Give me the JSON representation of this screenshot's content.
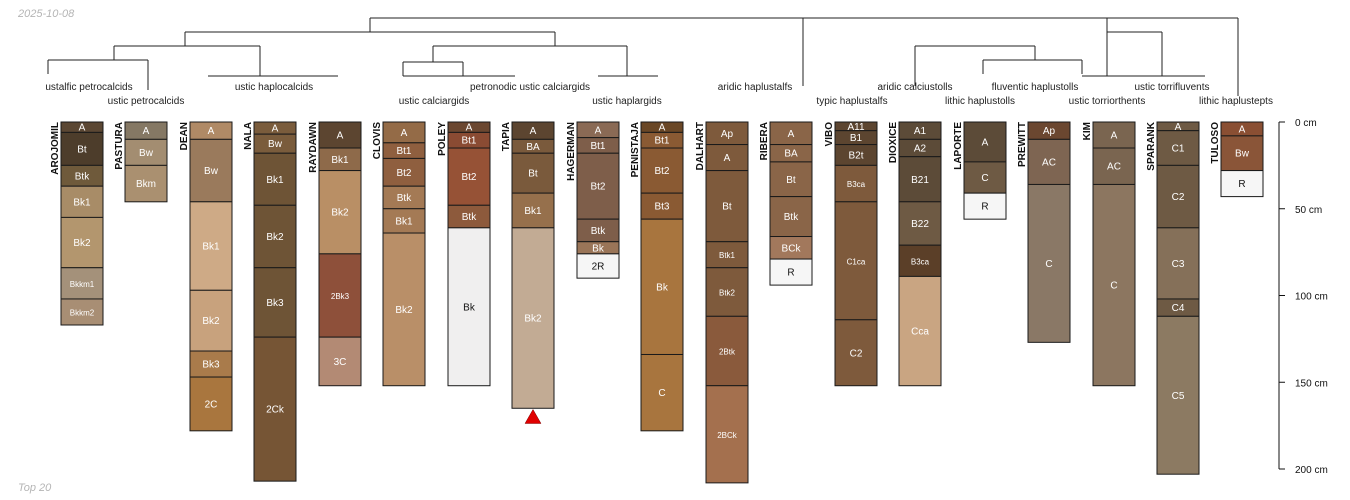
{
  "header": {
    "date": "2025-10-08"
  },
  "footer": {
    "label": "Top 20"
  },
  "chart_data": {
    "type": "soil-profile-sketch",
    "title": "",
    "depth_axis": {
      "unit": "cm",
      "range": [
        0,
        200
      ],
      "ticks": [
        {
          "value": 0,
          "label": "0 cm"
        },
        {
          "value": 50,
          "label": "50 cm"
        },
        {
          "value": 100,
          "label": "100 cm"
        },
        {
          "value": 150,
          "label": "150 cm"
        },
        {
          "value": 200,
          "label": "200 cm"
        }
      ]
    },
    "taxa": [
      {
        "label": "ustalfic petrocalcids"
      },
      {
        "label": "ustic petrocalcids"
      },
      {
        "label": "ustic haplocalcids"
      },
      {
        "label": "ustic calciargids"
      },
      {
        "label": "petronodic ustic calciargids"
      },
      {
        "label": "ustic haplargids"
      },
      {
        "label": "aridic haplustalfs"
      },
      {
        "label": "typic haplustalfs"
      },
      {
        "label": "aridic calciustolls"
      },
      {
        "label": "lithic haplustolls"
      },
      {
        "label": "fluventic haplustolls"
      },
      {
        "label": "ustic torriorthents"
      },
      {
        "label": "ustic torrifluvents"
      },
      {
        "label": "lithic haplustepts"
      }
    ],
    "profiles": [
      {
        "name": "AROJOMIL",
        "horizons": [
          {
            "name": "A",
            "top": 0,
            "bottom": 6,
            "color": "#5b4733"
          },
          {
            "name": "Bt",
            "top": 6,
            "bottom": 25,
            "color": "#4d3d2b"
          },
          {
            "name": "Btk",
            "top": 25,
            "bottom": 37,
            "color": "#6f5a3b"
          },
          {
            "name": "Bk1",
            "top": 37,
            "bottom": 55,
            "color": "#a88c67"
          },
          {
            "name": "Bk2",
            "top": 55,
            "bottom": 84,
            "color": "#b3966e"
          },
          {
            "name": "Bkkm1",
            "top": 84,
            "bottom": 102,
            "color": "#a4917a"
          },
          {
            "name": "Bkkm2",
            "top": 102,
            "bottom": 117,
            "color": "#a88e74"
          }
        ]
      },
      {
        "name": "PASTURA",
        "horizons": [
          {
            "name": "A",
            "top": 0,
            "bottom": 10,
            "color": "#857864"
          },
          {
            "name": "Bw",
            "top": 10,
            "bottom": 25,
            "color": "#a38d71"
          },
          {
            "name": "Bkm",
            "top": 25,
            "bottom": 46,
            "color": "#aa9070"
          }
        ]
      },
      {
        "name": "DEAN",
        "horizons": [
          {
            "name": "A",
            "top": 0,
            "bottom": 10,
            "color": "#b08a66"
          },
          {
            "name": "Bw",
            "top": 10,
            "bottom": 46,
            "color": "#9a7a5c"
          },
          {
            "name": "Bk1",
            "top": 46,
            "bottom": 97,
            "color": "#ceaa86"
          },
          {
            "name": "Bk2",
            "top": 97,
            "bottom": 132,
            "color": "#c8a27d"
          },
          {
            "name": "Bk3",
            "top": 132,
            "bottom": 147,
            "color": "#a97b4b"
          },
          {
            "name": "2C",
            "top": 147,
            "bottom": 178,
            "color": "#a9763e"
          }
        ]
      },
      {
        "name": "NALA",
        "horizons": [
          {
            "name": "A",
            "top": 0,
            "bottom": 7,
            "color": "#7a5c3c"
          },
          {
            "name": "Bw",
            "top": 7,
            "bottom": 18,
            "color": "#7a5c3c"
          },
          {
            "name": "Bk1",
            "top": 18,
            "bottom": 48,
            "color": "#6e5436"
          },
          {
            "name": "Bk2",
            "top": 48,
            "bottom": 84,
            "color": "#6e5436"
          },
          {
            "name": "Bk3",
            "top": 84,
            "bottom": 124,
            "color": "#6e5436"
          },
          {
            "name": "2Ck",
            "top": 124,
            "bottom": 207,
            "color": "#765535"
          }
        ]
      },
      {
        "name": "RAYDAWN",
        "horizons": [
          {
            "name": "A",
            "top": 0,
            "bottom": 15,
            "color": "#5c4530"
          },
          {
            "name": "Bk1",
            "top": 15,
            "bottom": 28,
            "color": "#8e6a4a"
          },
          {
            "name": "Bk2",
            "top": 28,
            "bottom": 76,
            "color": "#b98f65"
          },
          {
            "name": "2Bk3",
            "top": 76,
            "bottom": 124,
            "color": "#8e503a"
          },
          {
            "name": "3C",
            "top": 124,
            "bottom": 152,
            "color": "#b38a74"
          }
        ]
      },
      {
        "name": "CLOVIS",
        "horizons": [
          {
            "name": "A",
            "top": 0,
            "bottom": 12,
            "color": "#946b47"
          },
          {
            "name": "Bt1",
            "top": 12,
            "bottom": 21,
            "color": "#8f5f3f"
          },
          {
            "name": "Bt2",
            "top": 21,
            "bottom": 37,
            "color": "#8f5f3f"
          },
          {
            "name": "Btk",
            "top": 37,
            "bottom": 50,
            "color": "#a47a55"
          },
          {
            "name": "Bk1",
            "top": 50,
            "bottom": 64,
            "color": "#a47a55"
          },
          {
            "name": "Bk2",
            "top": 64,
            "bottom": 152,
            "color": "#b98f68"
          }
        ]
      },
      {
        "name": "POLEY",
        "horizons": [
          {
            "name": "A",
            "top": 0,
            "bottom": 6,
            "color": "#6b4730"
          },
          {
            "name": "Bt1",
            "top": 6,
            "bottom": 15,
            "color": "#8a4b33"
          },
          {
            "name": "Bt2",
            "top": 15,
            "bottom": 48,
            "color": "#965236"
          },
          {
            "name": "Btk",
            "top": 48,
            "bottom": 61,
            "color": "#8d5a3c"
          },
          {
            "name": "Bk",
            "top": 61,
            "bottom": 152,
            "color": "#f0efef"
          }
        ]
      },
      {
        "name": "TAPIA",
        "horizons": [
          {
            "name": "A",
            "top": 0,
            "bottom": 10,
            "color": "#5c4530"
          },
          {
            "name": "BA",
            "top": 10,
            "bottom": 18,
            "color": "#7a5a3c"
          },
          {
            "name": "Bt",
            "top": 18,
            "bottom": 41,
            "color": "#7a5a3c"
          },
          {
            "name": "Bk1",
            "top": 41,
            "bottom": 61,
            "color": "#96704c"
          },
          {
            "name": "Bk2",
            "top": 61,
            "bottom": 165,
            "color": "#c2ab94"
          }
        ]
      },
      {
        "name": "HAGERMAN",
        "horizons": [
          {
            "name": "A",
            "top": 0,
            "bottom": 9,
            "color": "#8a6a55"
          },
          {
            "name": "Bt1",
            "top": 9,
            "bottom": 18,
            "color": "#7e5e4a"
          },
          {
            "name": "Bt2",
            "top": 18,
            "bottom": 56,
            "color": "#7e5e4a"
          },
          {
            "name": "Btk",
            "top": 56,
            "bottom": 69,
            "color": "#7e5e4a"
          },
          {
            "name": "Bk",
            "top": 69,
            "bottom": 76,
            "color": "#9a7558"
          },
          {
            "name": "2R",
            "top": 76,
            "bottom": 90,
            "color": "#f6f6f6"
          }
        ]
      },
      {
        "name": "PENISTAJA",
        "horizons": [
          {
            "name": "A",
            "top": 0,
            "bottom": 6,
            "color": "#6a4726"
          },
          {
            "name": "Bt1",
            "top": 6,
            "bottom": 15,
            "color": "#8a5a33"
          },
          {
            "name": "Bt2",
            "top": 15,
            "bottom": 41,
            "color": "#8a5a33"
          },
          {
            "name": "Bt3",
            "top": 41,
            "bottom": 56,
            "color": "#8a5a33"
          },
          {
            "name": "Bk",
            "top": 56,
            "bottom": 134,
            "color": "#a8753e"
          },
          {
            "name": "C",
            "top": 134,
            "bottom": 178,
            "color": "#a8753e"
          }
        ]
      },
      {
        "name": "DALHART",
        "horizons": [
          {
            "name": "Ap",
            "top": 0,
            "bottom": 13,
            "color": "#7e5a3c"
          },
          {
            "name": "A",
            "top": 13,
            "bottom": 28,
            "color": "#7e5a3c"
          },
          {
            "name": "Bt",
            "top": 28,
            "bottom": 69,
            "color": "#7e5a3c"
          },
          {
            "name": "Btk1",
            "top": 69,
            "bottom": 84,
            "color": "#7e5a3c"
          },
          {
            "name": "Btk2",
            "top": 84,
            "bottom": 112,
            "color": "#7e5a3c"
          },
          {
            "name": "2Btk",
            "top": 112,
            "bottom": 152,
            "color": "#8a5a3c"
          },
          {
            "name": "2BCk",
            "top": 152,
            "bottom": 208,
            "color": "#a4704e"
          }
        ]
      },
      {
        "name": "RIBERA",
        "horizons": [
          {
            "name": "A",
            "top": 0,
            "bottom": 13,
            "color": "#8a6548"
          },
          {
            "name": "BA",
            "top": 13,
            "bottom": 23,
            "color": "#8a6548"
          },
          {
            "name": "Bt",
            "top": 23,
            "bottom": 43,
            "color": "#8a6548"
          },
          {
            "name": "Btk",
            "top": 43,
            "bottom": 66,
            "color": "#8a6548"
          },
          {
            "name": "BCk",
            "top": 66,
            "bottom": 79,
            "color": "#a2785c"
          },
          {
            "name": "R",
            "top": 79,
            "bottom": 94,
            "color": "#f6f6f6"
          }
        ]
      },
      {
        "name": "VIBO",
        "horizons": [
          {
            "name": "A11",
            "top": 0,
            "bottom": 5,
            "color": "#5c4530"
          },
          {
            "name": "B1",
            "top": 5,
            "bottom": 13,
            "color": "#5c4530"
          },
          {
            "name": "B2t",
            "top": 13,
            "bottom": 25,
            "color": "#5c4530"
          },
          {
            "name": "B3ca",
            "top": 25,
            "bottom": 46,
            "color": "#7e5a3c"
          },
          {
            "name": "C1ca",
            "top": 46,
            "bottom": 114,
            "color": "#7e5a3c"
          },
          {
            "name": "C2",
            "top": 114,
            "bottom": 152,
            "color": "#7e5a3c"
          }
        ]
      },
      {
        "name": "DIOXICE",
        "horizons": [
          {
            "name": "A1",
            "top": 0,
            "bottom": 10,
            "color": "#5c4b38"
          },
          {
            "name": "A2",
            "top": 10,
            "bottom": 20,
            "color": "#5c4b38"
          },
          {
            "name": "B21",
            "top": 20,
            "bottom": 46,
            "color": "#5c4b38"
          },
          {
            "name": "B22",
            "top": 46,
            "bottom": 71,
            "color": "#6e5a44"
          },
          {
            "name": "B3ca",
            "top": 71,
            "bottom": 89,
            "color": "#5b3f28"
          },
          {
            "name": "Cca",
            "top": 89,
            "bottom": 152,
            "color": "#c9a582"
          }
        ]
      },
      {
        "name": "LAPORTE",
        "horizons": [
          {
            "name": "A",
            "top": 0,
            "bottom": 23,
            "color": "#5c4b38"
          },
          {
            "name": "C",
            "top": 23,
            "bottom": 41,
            "color": "#6e5a44"
          },
          {
            "name": "R",
            "top": 41,
            "bottom": 56,
            "color": "#f6f6f6"
          }
        ]
      },
      {
        "name": "PREWITT",
        "horizons": [
          {
            "name": "Ap",
            "top": 0,
            "bottom": 10,
            "color": "#6b4730"
          },
          {
            "name": "AC",
            "top": 10,
            "bottom": 36,
            "color": "#7e6552"
          },
          {
            "name": "C",
            "top": 36,
            "bottom": 127,
            "color": "#8a7866"
          }
        ]
      },
      {
        "name": "KIM",
        "horizons": [
          {
            "name": "A",
            "top": 0,
            "bottom": 15,
            "color": "#7a6550"
          },
          {
            "name": "AC",
            "top": 15,
            "bottom": 36,
            "color": "#7a6550"
          },
          {
            "name": "C",
            "top": 36,
            "bottom": 152,
            "color": "#8c7660"
          }
        ]
      },
      {
        "name": "SPARANK",
        "horizons": [
          {
            "name": "A",
            "top": 0,
            "bottom": 5,
            "color": "#6e5a44"
          },
          {
            "name": "C1",
            "top": 5,
            "bottom": 25,
            "color": "#6e5a44"
          },
          {
            "name": "C2",
            "top": 25,
            "bottom": 61,
            "color": "#6e5a44"
          },
          {
            "name": "C3",
            "top": 61,
            "bottom": 102,
            "color": "#857059"
          },
          {
            "name": "C4",
            "top": 102,
            "bottom": 112,
            "color": "#6e5a44"
          },
          {
            "name": "C5",
            "top": 112,
            "bottom": 203,
            "color": "#8c7a62"
          }
        ]
      },
      {
        "name": "TULOSO",
        "horizons": [
          {
            "name": "A",
            "top": 0,
            "bottom": 8,
            "color": "#8a4f33"
          },
          {
            "name": "Bw",
            "top": 8,
            "bottom": 28,
            "color": "#8a5538"
          },
          {
            "name": "R",
            "top": 28,
            "bottom": 43,
            "color": "#f6f6f6"
          }
        ]
      }
    ],
    "marker": {
      "profile": "TAPIA",
      "depth": 168,
      "symbol": "triangle",
      "color": "#e00000"
    }
  }
}
